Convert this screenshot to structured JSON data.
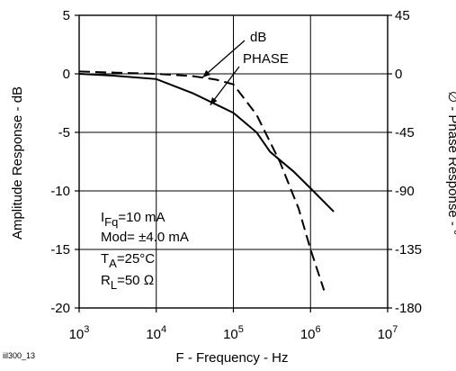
{
  "figure_id": "iil300_13",
  "chart_data": {
    "type": "line",
    "xlabel": "F - Frequency - Hz",
    "ylabel_left": "Amplitude Response - dB",
    "ylabel_right": "∅ - Phase Response - °",
    "xscale": "log",
    "xlim": [
      1000,
      10000000
    ],
    "ylim_left": [
      -20,
      5
    ],
    "ylim_right": [
      -180,
      45
    ],
    "x_ticks": [
      {
        "base": "10",
        "exp": "3",
        "value": 1000
      },
      {
        "base": "10",
        "exp": "4",
        "value": 10000
      },
      {
        "base": "10",
        "exp": "5",
        "value": 100000
      },
      {
        "base": "10",
        "exp": "6",
        "value": 1000000
      },
      {
        "base": "10",
        "exp": "7",
        "value": 10000000
      }
    ],
    "y_ticks_left": [
      "5",
      "0",
      "-5",
      "-10",
      "-15",
      "-20"
    ],
    "y_ticks_right": [
      "45",
      "0",
      "-45",
      "-90",
      "-135",
      "-180"
    ],
    "grid": true,
    "series": [
      {
        "name": "dB",
        "axis": "left",
        "style": "dashed",
        "x": [
          1000,
          3000,
          10000,
          30000,
          60000,
          100000,
          200000,
          400000,
          700000,
          1000000,
          1500000
        ],
        "y": [
          0.2,
          0.1,
          0.0,
          -0.2,
          -0.5,
          -0.9,
          -3.5,
          -7.5,
          -11.5,
          -15.0,
          -18.5
        ]
      },
      {
        "name": "PHASE",
        "axis": "right",
        "style": "solid",
        "x": [
          1000,
          3000,
          10000,
          30000,
          100000,
          200000,
          300000,
          600000,
          1000000,
          2000000
        ],
        "y": [
          0,
          -1.5,
          -4,
          -15,
          -30,
          -45,
          -60,
          -75,
          -88,
          -106
        ]
      }
    ],
    "annotations": {
      "series_labels": [
        "dB",
        "PHASE"
      ],
      "conditions": [
        {
          "main": "I",
          "sub": "Fq",
          "rest": "=10 mA"
        },
        {
          "main": "Mod= ±4.0 mA",
          "sub": "",
          "rest": ""
        },
        {
          "main": "T",
          "sub": "A",
          "rest": "=25°C"
        },
        {
          "main": "R",
          "sub": "L",
          "rest": "=50 Ω"
        }
      ]
    }
  }
}
